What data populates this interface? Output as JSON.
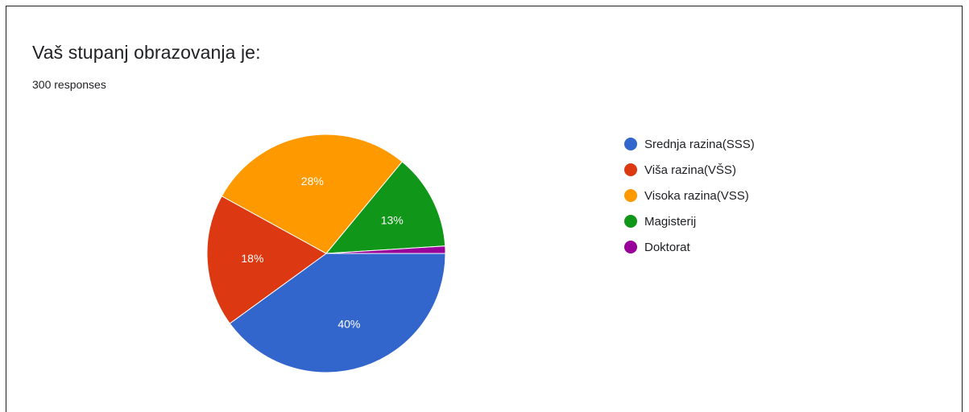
{
  "chart_data": {
    "type": "pie",
    "title": "Vaš stupanj obrazovanja je:",
    "subtitle": "300 responses",
    "labels": [
      "Srednja razina(SSS)",
      "Viša razina(VŠS)",
      "Visoka razina(VSS)",
      "Magisterij",
      "Doktorat"
    ],
    "values": [
      40,
      18,
      28,
      13,
      1
    ],
    "data_labels": [
      "40%",
      "18%",
      "28%",
      "13%",
      ""
    ],
    "colors": [
      "#3366cc",
      "#dc3912",
      "#ff9900",
      "#109618",
      "#990099"
    ],
    "legend_position": "right"
  }
}
